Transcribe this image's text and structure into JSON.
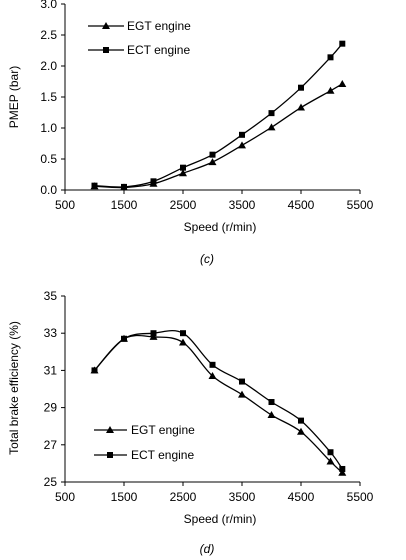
{
  "chart_data": [
    {
      "type": "line",
      "caption": "(c)",
      "xlabel": "Speed   (r/min)",
      "ylabel": "PMEP  (bar)",
      "xlim": [
        500,
        5500
      ],
      "ylim": [
        0.0,
        3.0
      ],
      "xticks": [
        "500",
        "1500",
        "2500",
        "3500",
        "4500",
        "5500"
      ],
      "yticks": [
        "0.0",
        "0.5",
        "1.0",
        "1.5",
        "2.0",
        "2.5",
        "3.0"
      ],
      "legend_position": "top-left",
      "x": [
        1000,
        1500,
        2000,
        2500,
        3000,
        3500,
        4000,
        4500,
        5000,
        5200
      ],
      "series": [
        {
          "name": "EGT engine",
          "marker": "triangle",
          "values": [
            0.06,
            0.04,
            0.1,
            0.27,
            0.45,
            0.72,
            1.01,
            1.33,
            1.6,
            1.71
          ]
        },
        {
          "name": "ECT engine",
          "marker": "square",
          "values": [
            0.07,
            0.05,
            0.14,
            0.36,
            0.57,
            0.89,
            1.24,
            1.65,
            2.14,
            2.36
          ]
        }
      ]
    },
    {
      "type": "line",
      "caption": "(d)",
      "xlabel": "Speed   (r/min)",
      "ylabel": "Total brake efficiency  (%)",
      "xlim": [
        500,
        5500
      ],
      "ylim": [
        25,
        35
      ],
      "xticks": [
        "500",
        "1500",
        "2500",
        "3500",
        "4500",
        "5500"
      ],
      "yticks": [
        "25",
        "27",
        "29",
        "31",
        "33",
        "35"
      ],
      "legend_position": "bottom-left",
      "x": [
        1000,
        1500,
        2000,
        2500,
        3000,
        3500,
        4000,
        4500,
        5000,
        5200
      ],
      "series": [
        {
          "name": "EGT engine",
          "marker": "triangle",
          "values": [
            31.0,
            32.7,
            32.8,
            32.5,
            30.7,
            29.7,
            28.6,
            27.7,
            26.1,
            25.5
          ]
        },
        {
          "name": "ECT engine",
          "marker": "square",
          "values": [
            31.0,
            32.7,
            33.0,
            33.0,
            31.3,
            30.4,
            29.3,
            28.3,
            26.6,
            25.7
          ]
        }
      ]
    }
  ]
}
